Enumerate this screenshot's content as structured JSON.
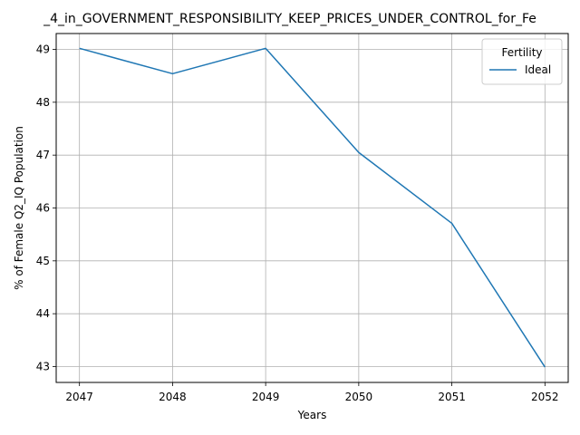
{
  "chart_data": {
    "type": "line",
    "title": "_4_in_GOVERNMENT_RESPONSIBILITY_KEEP_PRICES_UNDER_CONTROL_for_Fe",
    "xlabel": "Years",
    "ylabel": "% of Female Q2_IQ Population",
    "x": [
      2047,
      2048,
      2049,
      2050,
      2051,
      2052
    ],
    "x_tick_labels": [
      "2047",
      "2048",
      "2049",
      "2050",
      "2051",
      "2052"
    ],
    "y_ticks": [
      43,
      44,
      45,
      46,
      47,
      48,
      49
    ],
    "y_tick_labels": [
      "43",
      "44",
      "45",
      "46",
      "47",
      "48",
      "49"
    ],
    "xlim": [
      2046.75,
      2052.25
    ],
    "ylim": [
      42.7,
      49.3
    ],
    "grid": true,
    "legend": {
      "title": "Fertility",
      "placement": "top-right"
    },
    "series": [
      {
        "name": "Ideal",
        "color": "#1f77b4",
        "values": [
          49.02,
          48.54,
          49.02,
          47.05,
          45.71,
          42.99
        ]
      }
    ]
  }
}
